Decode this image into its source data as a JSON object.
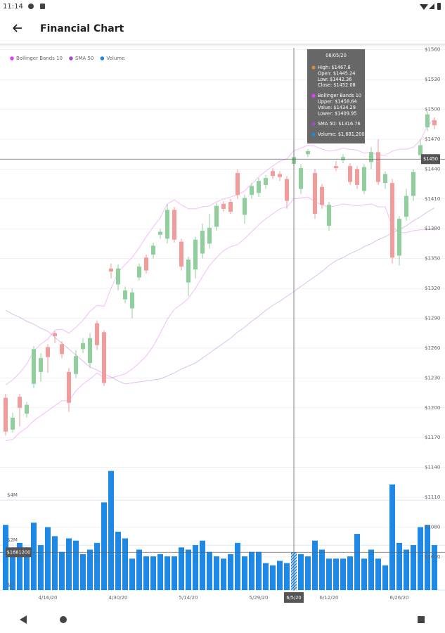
{
  "status_bar": {
    "time": "11:14"
  },
  "app_bar": {
    "title": "Financial Chart"
  },
  "chart_data": {
    "type": "candlestick",
    "categories": [
      null,
      null,
      null,
      null,
      null,
      null,
      "4/16/20",
      null,
      null,
      null,
      null,
      null,
      null,
      null,
      null,
      null,
      "4/30/20",
      null,
      null,
      null,
      null,
      null,
      null,
      null,
      null,
      null,
      "5/14/20",
      null,
      null,
      null,
      null,
      null,
      null,
      null,
      null,
      null,
      "5/29/20",
      null,
      null,
      null,
      null,
      "6/5/20",
      null,
      null,
      null,
      null,
      "6/12/20",
      null,
      null,
      null,
      null,
      null,
      null,
      null,
      null,
      null,
      "6/26/20",
      null,
      null,
      null,
      null,
      null
    ],
    "open": [
      1210,
      1178,
      1211,
      1194,
      1224,
      1236,
      1261,
      1275,
      1264,
      1236,
      1234,
      1259,
      1245,
      1285,
      1276,
      1340,
      1324,
      1309,
      1300,
      1331,
      1351,
      1354,
      1374,
      1370,
      1399,
      1367,
      1326,
      1339,
      1355,
      1365,
      1382,
      1405,
      1407,
      1436,
      1394,
      1414,
      1416,
      1424,
      1438,
      1435,
      1430,
      1445.24,
      1420,
      1455,
      1436,
      1422,
      1383,
      1443,
      1449,
      1443,
      1440,
      1418,
      1447,
      1457,
      1426,
      1426,
      1353,
      1392,
      1413,
      1454,
      1482,
      1489
    ],
    "high": [
      1214,
      1195,
      1214,
      1206,
      1262,
      1255,
      1264,
      1277,
      1267,
      1240,
      1258,
      1270,
      1275,
      1288,
      1278,
      1345,
      1344,
      1322,
      1320,
      1345,
      1354,
      1366,
      1380,
      1405,
      1402,
      1370,
      1352,
      1372,
      1385,
      1395,
      1406,
      1408,
      1410,
      1440,
      1414,
      1426,
      1431,
      1434,
      1441,
      1438,
      1433,
      1467.8,
      1445,
      1460,
      1440,
      1425,
      1407,
      1448,
      1455,
      1446,
      1443,
      1445,
      1462,
      1470,
      1438,
      1430,
      1393,
      1420,
      1440,
      1470,
      1498,
      1492
    ],
    "low": [
      1172,
      1175,
      1181,
      1190,
      1220,
      1226,
      1235,
      1265,
      1250,
      1196,
      1230,
      1255,
      1240,
      1258,
      1222,
      1330,
      1318,
      1305,
      1290,
      1328,
      1335,
      1350,
      1370,
      1365,
      1366,
      1338,
      1312,
      1330,
      1350,
      1360,
      1378,
      1397,
      1395,
      1410,
      1385,
      1410,
      1412,
      1420,
      1430,
      1428,
      1400,
      1442.36,
      1415,
      1452,
      1390,
      1400,
      1378,
      1438,
      1446,
      1424,
      1420,
      1415,
      1440,
      1424,
      1420,
      1345,
      1343,
      1388,
      1408,
      1450,
      1478,
      1480
    ],
    "close": [
      1176,
      1190,
      1200,
      1203,
      1259,
      1250,
      1251,
      1272,
      1254,
      1205,
      1252,
      1265,
      1270,
      1263,
      1225,
      1337,
      1340,
      1318,
      1316,
      1342,
      1338,
      1363,
      1377,
      1399,
      1369,
      1342,
      1349,
      1369,
      1378,
      1381,
      1403,
      1400,
      1397,
      1414,
      1411,
      1423,
      1428,
      1431,
      1433,
      1432,
      1408,
      1452.08,
      1441,
      1458,
      1395,
      1404,
      1404,
      1441,
      1452,
      1427,
      1424,
      1442,
      1457,
      1427,
      1435,
      1351,
      1390,
      1413,
      1437,
      1464,
      1495,
      1484
    ],
    "up_color": "#8fcf9c",
    "down_color": "#f39a9a",
    "series": [
      {
        "name": "Bollinger Bands 10",
        "color": "#e040fb",
        "upper": [
          1223,
          1228,
          1235,
          1244,
          1257,
          1264,
          1269,
          1278,
          1279,
          1275,
          1281,
          1288,
          1297,
          1303,
          1302,
          1320,
          1336,
          1344,
          1351,
          1361,
          1372,
          1382,
          1391,
          1405,
          1409,
          1404,
          1400,
          1400,
          1402,
          1403,
          1407,
          1410,
          1412,
          1414,
          1418,
          1425,
          1432,
          1438,
          1443,
          1448,
          1450,
          1458.64,
          1461,
          1464,
          1463,
          1460,
          1458,
          1459,
          1461,
          1460,
          1459,
          1456,
          1457,
          1454,
          1454,
          1458,
          1460,
          1460,
          1462,
          1469,
          1483,
          1491
        ],
        "lower": [
          1167,
          1168,
          1175,
          1180,
          1187,
          1192,
          1197,
          1202,
          1207,
          1207,
          1217,
          1224,
          1229,
          1235,
          1230,
          1230,
          1232,
          1234,
          1239,
          1245,
          1252,
          1262,
          1275,
          1289,
          1299,
          1304,
          1310,
          1320,
          1332,
          1343,
          1351,
          1358,
          1362,
          1364,
          1370,
          1377,
          1384,
          1390,
          1395,
          1400,
          1402,
          1409.95,
          1411,
          1412,
          1407,
          1404,
          1402,
          1403,
          1405,
          1404,
          1403,
          1404,
          1405,
          1402,
          1402,
          1382,
          1376,
          1376,
          1378,
          1379,
          1379,
          1381
        ]
      },
      {
        "name": "SMA 50",
        "color": "#9c4dcc",
        "values": [
          1298,
          1294,
          1291,
          1287,
          1284,
          1280,
          1277,
          1271,
          1265,
          1259,
          1253,
          1247,
          1241,
          1238,
          1234,
          1231,
          1227,
          1224,
          1225,
          1226,
          1227,
          1228,
          1229,
          1232,
          1235,
          1239,
          1242,
          1245,
          1250,
          1255,
          1260,
          1265,
          1270,
          1276,
          1281,
          1287,
          1292,
          1298,
          1303,
          1307,
          1312,
          1316.76,
          1322,
          1327,
          1332,
          1337,
          1343,
          1348,
          1351,
          1355,
          1358,
          1362,
          1365,
          1369,
          1372,
          1376,
          1379,
          1383,
          1388,
          1392,
          1397,
          1401
        ]
      },
      {
        "name": "Volume",
        "color": "#1e88e5",
        "axis": "y2",
        "values": [
          2900000,
          1500000,
          2100000,
          1900000,
          3000000,
          2000000,
          2800000,
          2400000,
          1700000,
          2300000,
          2200000,
          1600000,
          1800000,
          2100000,
          3900000,
          5300000,
          2600000,
          2300000,
          1400000,
          1800000,
          1500000,
          1500000,
          1600000,
          1500000,
          1500000,
          1900000,
          1800000,
          2000000,
          2200000,
          1700000,
          1500000,
          1400000,
          1600000,
          2100000,
          1500000,
          1700000,
          1700000,
          1200000,
          1100000,
          1300000,
          1200000,
          1681200,
          1600000,
          1500000,
          2200000,
          1800000,
          1400000,
          1400000,
          1400000,
          1500000,
          2500000,
          1400000,
          1800000,
          1400000,
          1100000,
          4700000,
          2100000,
          1800000,
          2000000,
          2800000,
          2900000,
          2000000
        ]
      }
    ],
    "ylim": [
      1016,
      1564
    ],
    "yticks": [
      {
        "value": 1560,
        "label": "$1560"
      },
      {
        "value": 1530,
        "label": "$1530"
      },
      {
        "value": 1500,
        "label": "$1500"
      },
      {
        "value": 1470,
        "label": "$1470"
      },
      {
        "value": 1440,
        "label": "$1440"
      },
      {
        "value": 1410,
        "label": "$1410"
      },
      {
        "value": 1380,
        "label": "$1380"
      },
      {
        "value": 1350,
        "label": "$1350"
      },
      {
        "value": 1320,
        "label": "$1320"
      },
      {
        "value": 1290,
        "label": "$1290"
      },
      {
        "value": 1260,
        "label": "$1260"
      },
      {
        "value": 1230,
        "label": "$1230"
      },
      {
        "value": 1200,
        "label": "$1200"
      },
      {
        "value": 1170,
        "label": "$1170"
      },
      {
        "value": 1140,
        "label": "$1140"
      },
      {
        "value": 1110,
        "label": "$1110"
      },
      {
        "value": 1080,
        "label": "$1080"
      },
      {
        "value": 1050,
        "label": "$1050"
      }
    ],
    "y2lim": [
      0,
      5600000
    ],
    "y2ticks": [
      {
        "value": 0,
        "label": "$0"
      },
      {
        "value": 2000000,
        "label": "$2M"
      },
      {
        "value": 4000000,
        "label": "$4M"
      }
    ],
    "grid": true,
    "legend": "top-left",
    "selected": 41,
    "crosshair_y": {
      "value": 1450,
      "label": "$1450"
    },
    "crosshair_y2": {
      "value": 1681200,
      "label": "$1681200"
    },
    "tooltip": {
      "title": "06/05/20",
      "groups": [
        {
          "color": "#d98b3a",
          "lines": [
            "High: $1467.8",
            "Open: $1445.24",
            "Low: $1442.36",
            "Close: $1452.08"
          ]
        },
        {
          "color": "#e040fb",
          "lines": [
            "Bollinger Bands 10",
            "Upper: $1458.64",
            "Value: $1434.29",
            "Lower: $1409.95"
          ]
        },
        {
          "color": "#9c4dcc",
          "lines": [
            "SMA 50: $1316.76"
          ]
        },
        {
          "color": "#1e88e5",
          "lines": [
            "Volume: $1,681,200"
          ]
        }
      ]
    }
  }
}
